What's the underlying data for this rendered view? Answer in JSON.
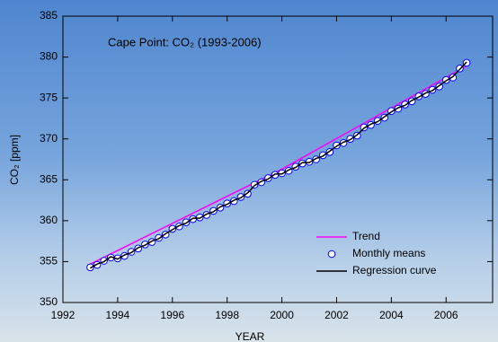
{
  "chart_data": {
    "type": "line",
    "title": "Cape Point: CO₂ (1993-2006)",
    "xlabel": "YEAR",
    "ylabel": "CO₂ [ppm]",
    "xlim": [
      1992,
      2007.7
    ],
    "xticks": [
      1992,
      1994,
      1996,
      1998,
      2000,
      2002,
      2004,
      2006
    ],
    "ylim": [
      350,
      385
    ],
    "yticks": [
      350,
      355,
      360,
      365,
      370,
      375,
      380,
      385
    ],
    "legend": "lower right",
    "series": [
      {
        "name": "Trend",
        "color": "#ff00ff",
        "mode": "line",
        "x": [
          1993,
          2000,
          2006.9
        ],
        "values": [
          354.7,
          366.3,
          379.2
        ]
      },
      {
        "name": "Monthly means",
        "color": "#0000ff",
        "mode": "markers",
        "x": [
          1993,
          1993.25,
          1993.5,
          1993.75,
          1994,
          1994.25,
          1994.5,
          1994.75,
          1995,
          1995.25,
          1995.5,
          1995.75,
          1996,
          1996.25,
          1996.5,
          1996.75,
          1997,
          1997.25,
          1997.5,
          1997.75,
          1998,
          1998.25,
          1998.5,
          1998.75,
          1999,
          1999.25,
          1999.5,
          1999.75,
          2000,
          2000.25,
          2000.5,
          2000.75,
          2001,
          2001.25,
          2001.5,
          2001.75,
          2002,
          2002.25,
          2002.5,
          2002.75,
          2003,
          2003.25,
          2003.5,
          2003.75,
          2004,
          2004.25,
          2004.5,
          2004.75,
          2005,
          2005.25,
          2005.5,
          2005.75,
          2006,
          2006.25,
          2006.5,
          2006.75
        ],
        "values": [
          354.3,
          354.6,
          355.1,
          355.5,
          355.4,
          355.7,
          356.2,
          356.6,
          357.1,
          357.4,
          357.9,
          358.3,
          359.0,
          359.3,
          359.8,
          360.2,
          360.4,
          360.7,
          361.2,
          361.6,
          362.1,
          362.4,
          362.9,
          363.3,
          364.4,
          364.7,
          365.2,
          365.6,
          365.8,
          366.1,
          366.6,
          367.0,
          367.2,
          367.5,
          368.0,
          368.4,
          369.2,
          369.5,
          370.0,
          370.4,
          371.4,
          371.7,
          372.2,
          372.6,
          373.4,
          373.7,
          374.2,
          374.6,
          375.2,
          375.5,
          376.0,
          376.4,
          377.2,
          377.5,
          378.6,
          379.3
        ]
      },
      {
        "name": "Regression curve",
        "color": "#000000",
        "mode": "line",
        "x": [
          1993,
          1993.25,
          1993.5,
          1993.75,
          1994,
          1994.25,
          1994.5,
          1994.75,
          1995,
          1995.25,
          1995.5,
          1995.75,
          1996,
          1996.25,
          1996.5,
          1996.75,
          1997,
          1997.25,
          1997.5,
          1997.75,
          1998,
          1998.25,
          1998.5,
          1998.75,
          1999,
          1999.25,
          1999.5,
          1999.75,
          2000,
          2000.25,
          2000.5,
          2000.75,
          2001,
          2001.25,
          2001.5,
          2001.75,
          2002,
          2002.25,
          2002.5,
          2002.75,
          2003,
          2003.25,
          2003.5,
          2003.75,
          2004,
          2004.25,
          2004.5,
          2004.75,
          2005,
          2005.25,
          2005.5,
          2005.75,
          2006,
          2006.25,
          2006.5,
          2006.75
        ],
        "values": [
          354.2,
          354.7,
          355.0,
          355.6,
          355.3,
          355.8,
          356.1,
          356.7,
          357.0,
          357.5,
          357.8,
          358.4,
          358.9,
          359.4,
          359.7,
          360.3,
          360.3,
          360.8,
          361.1,
          361.7,
          362.0,
          362.5,
          362.8,
          363.4,
          364.3,
          364.8,
          365.1,
          365.7,
          365.7,
          366.2,
          366.5,
          367.1,
          367.1,
          367.6,
          367.9,
          368.5,
          369.1,
          369.6,
          369.9,
          370.5,
          371.3,
          371.8,
          372.1,
          372.7,
          373.3,
          373.8,
          374.1,
          374.7,
          375.1,
          375.6,
          375.9,
          376.5,
          377.1,
          377.6,
          378.5,
          379.4
        ]
      }
    ]
  }
}
